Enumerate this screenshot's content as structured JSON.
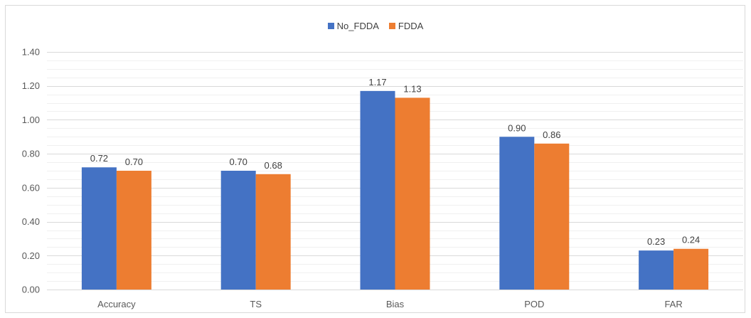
{
  "chart_data": {
    "type": "bar",
    "categories": [
      "Accuracy",
      "TS",
      "Bias",
      "POD",
      "FAR"
    ],
    "series": [
      {
        "name": "No_FDDA",
        "values": [
          0.72,
          0.7,
          1.17,
          0.9,
          0.23
        ],
        "labels": [
          "0.72",
          "0.70",
          "1.17",
          "0.90",
          "0.23"
        ],
        "color": "#4472c4"
      },
      {
        "name": "FDDA",
        "values": [
          0.7,
          0.68,
          1.13,
          0.86,
          0.24
        ],
        "labels": [
          "0.70",
          "0.68",
          "1.13",
          "0.86",
          "0.24"
        ],
        "color": "#ed7d31"
      }
    ],
    "ylim": [
      0,
      1.4
    ],
    "yticks": [
      "0.00",
      "0.20",
      "0.40",
      "0.60",
      "0.80",
      "1.00",
      "1.20",
      "1.40"
    ],
    "title": "",
    "xlabel": "",
    "ylabel": "",
    "grid": true,
    "legend_position": "top",
    "gridline_color": "#d9d9d9"
  }
}
